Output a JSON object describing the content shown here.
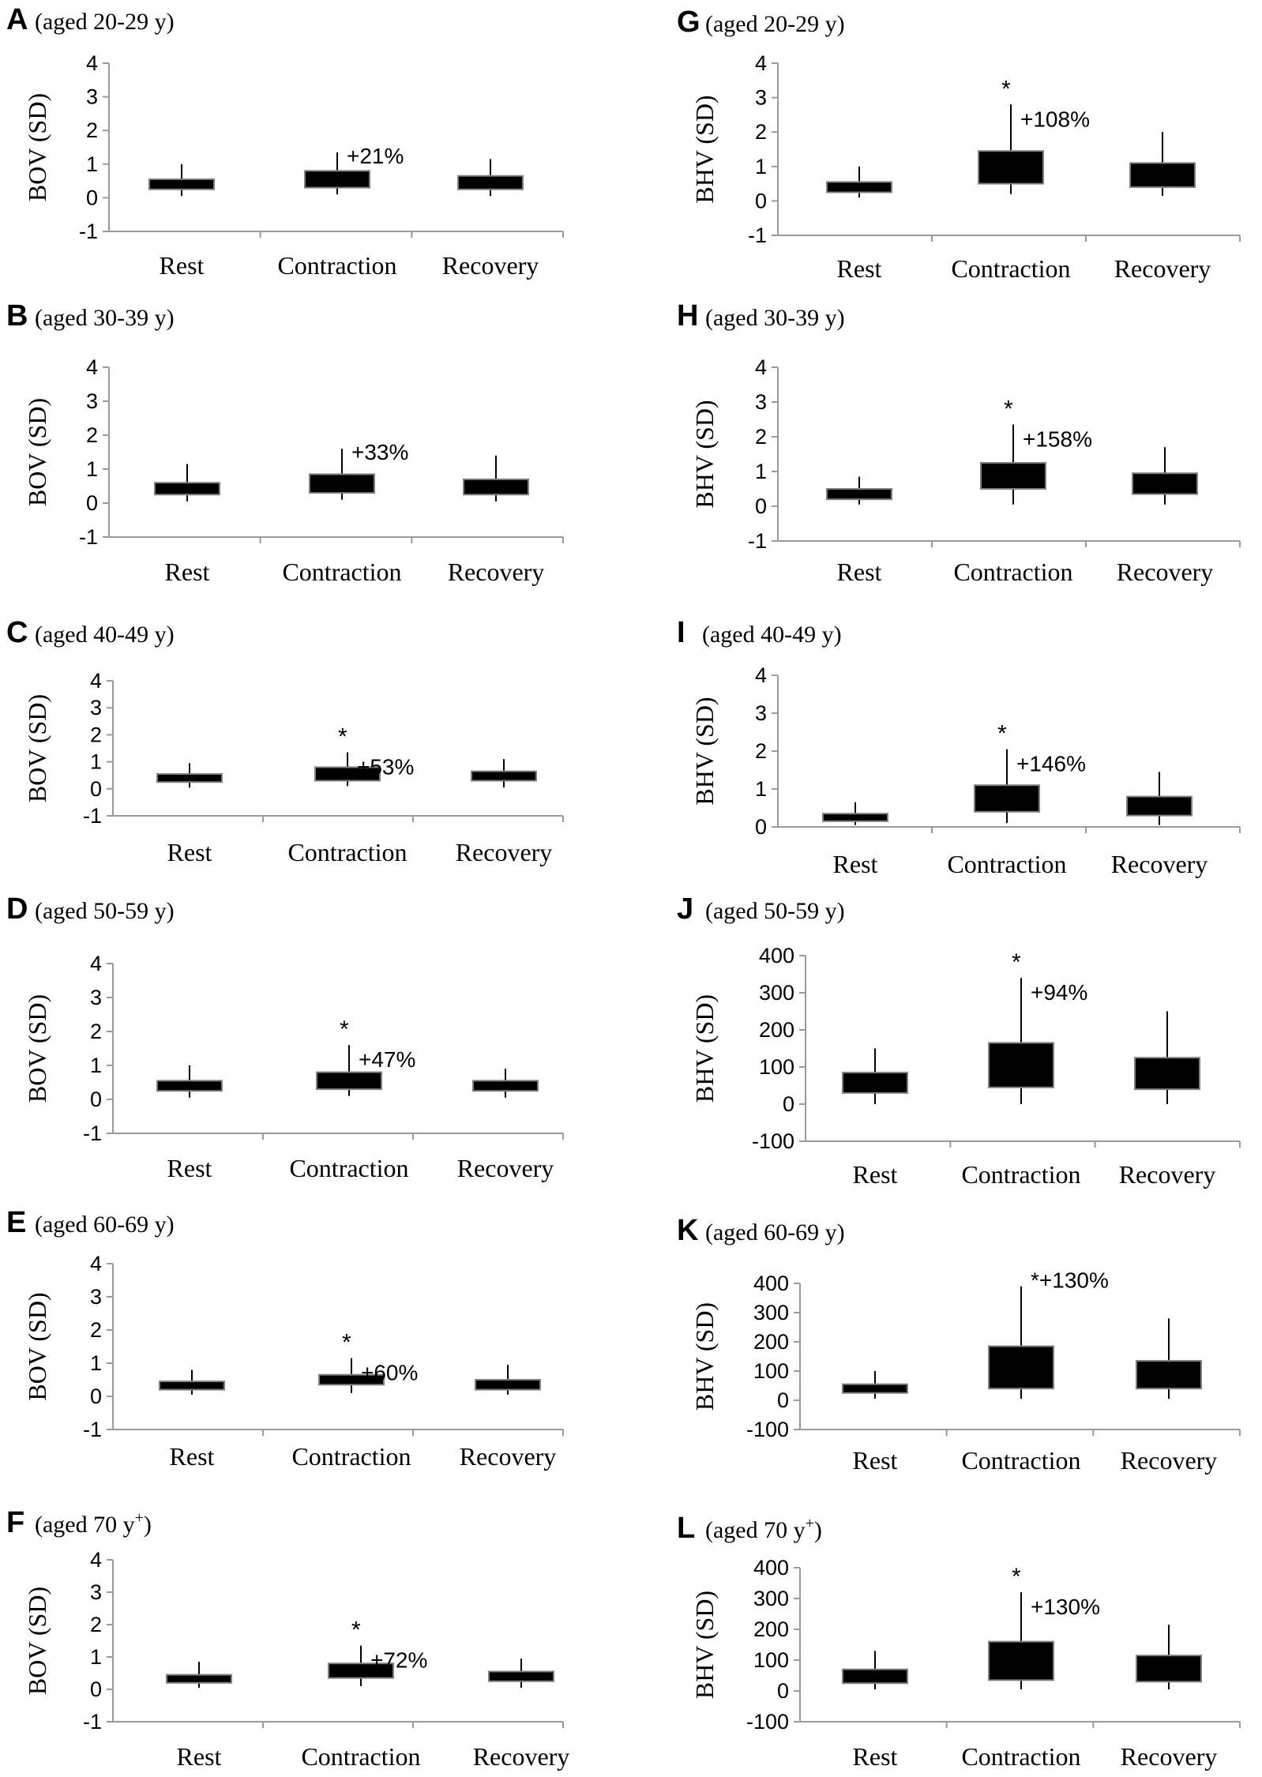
{
  "chart_data": [
    {
      "id": "A",
      "letter": "A",
      "title": "(aged 20-29 y)",
      "type": "bar",
      "ylabel": "BOV (SD)",
      "yticks": [
        4,
        3,
        2,
        1,
        0,
        -1
      ],
      "ylim": [
        -1,
        4
      ],
      "categories": [
        "Rest",
        "Contraction",
        "Recovery"
      ],
      "boxes": [
        {
          "low": 0.25,
          "high": 0.55,
          "whisker_low": 0.05,
          "whisker_high": 1.0
        },
        {
          "low": 0.3,
          "high": 0.8,
          "whisker_low": 0.1,
          "whisker_high": 1.35
        },
        {
          "low": 0.25,
          "high": 0.65,
          "whisker_low": 0.05,
          "whisker_high": 1.15
        }
      ],
      "annotation": {
        "category": 1,
        "text": "+21%",
        "star": false
      }
    },
    {
      "id": "B",
      "letter": "B",
      "title": "(aged 30-39 y)",
      "type": "bar",
      "ylabel": "BOV (SD)",
      "yticks": [
        4,
        3,
        2,
        1,
        0,
        -1
      ],
      "ylim": [
        -1,
        4
      ],
      "categories": [
        "Rest",
        "Contraction",
        "Recovery"
      ],
      "boxes": [
        {
          "low": 0.25,
          "high": 0.6,
          "whisker_low": 0.05,
          "whisker_high": 1.15
        },
        {
          "low": 0.3,
          "high": 0.85,
          "whisker_low": 0.1,
          "whisker_high": 1.6
        },
        {
          "low": 0.25,
          "high": 0.7,
          "whisker_low": 0.05,
          "whisker_high": 1.4
        }
      ],
      "annotation": {
        "category": 1,
        "text": "+33%",
        "star": false
      }
    },
    {
      "id": "C",
      "letter": "C",
      "title": "(aged 40-49 y)",
      "type": "bar",
      "ylabel": "BOV (SD)",
      "yticks": [
        4,
        3,
        2,
        1,
        0,
        -1
      ],
      "ylim": [
        -1,
        4
      ],
      "categories": [
        "Rest",
        "Contraction",
        "Recovery"
      ],
      "boxes": [
        {
          "low": 0.25,
          "high": 0.55,
          "whisker_low": 0.05,
          "whisker_high": 0.95
        },
        {
          "low": 0.3,
          "high": 0.8,
          "whisker_low": 0.1,
          "whisker_high": 1.35
        },
        {
          "low": 0.3,
          "high": 0.65,
          "whisker_low": 0.05,
          "whisker_high": 1.1
        }
      ],
      "annotation": {
        "category": 1,
        "text": "+53%",
        "star": true
      }
    },
    {
      "id": "D",
      "letter": "D",
      "title": "(aged 50-59 y)",
      "type": "bar",
      "ylabel": "BOV (SD)",
      "yticks": [
        4,
        3,
        2,
        1,
        0,
        -1
      ],
      "ylim": [
        -1,
        4
      ],
      "categories": [
        "Rest",
        "Contraction",
        "Recovery"
      ],
      "boxes": [
        {
          "low": 0.25,
          "high": 0.55,
          "whisker_low": 0.05,
          "whisker_high": 1.0
        },
        {
          "low": 0.3,
          "high": 0.8,
          "whisker_low": 0.1,
          "whisker_high": 1.6
        },
        {
          "low": 0.25,
          "high": 0.55,
          "whisker_low": 0.05,
          "whisker_high": 0.9
        }
      ],
      "annotation": {
        "category": 1,
        "text": "+47%",
        "star": true
      }
    },
    {
      "id": "E",
      "letter": "E",
      "title": "(aged 60-69 y)",
      "type": "bar",
      "ylabel": "BOV (SD)",
      "yticks": [
        4,
        3,
        2,
        1,
        0,
        -1
      ],
      "ylim": [
        -1,
        4
      ],
      "categories": [
        "Rest",
        "Contraction",
        "Recovery"
      ],
      "boxes": [
        {
          "low": 0.2,
          "high": 0.45,
          "whisker_low": 0.05,
          "whisker_high": 0.8
        },
        {
          "low": 0.35,
          "high": 0.65,
          "whisker_low": 0.1,
          "whisker_high": 1.15
        },
        {
          "low": 0.2,
          "high": 0.5,
          "whisker_low": 0.05,
          "whisker_high": 0.95
        }
      ],
      "annotation": {
        "category": 1,
        "text": "+60%",
        "star": true
      }
    },
    {
      "id": "F",
      "letter": "F",
      "title": "(aged 70 y",
      "title_sup": "+",
      "title_end": ")",
      "type": "bar",
      "ylabel": "BOV (SD)",
      "yticks": [
        4,
        3,
        2,
        1,
        0,
        -1
      ],
      "ylim": [
        -1,
        4
      ],
      "categories": [
        "Rest",
        "Contraction",
        "Recovery"
      ],
      "boxes": [
        {
          "low": 0.2,
          "high": 0.45,
          "whisker_low": 0.05,
          "whisker_high": 0.85
        },
        {
          "low": 0.35,
          "high": 0.8,
          "whisker_low": 0.1,
          "whisker_high": 1.35
        },
        {
          "low": 0.25,
          "high": 0.55,
          "whisker_low": 0.05,
          "whisker_high": 0.95
        }
      ],
      "annotation": {
        "category": 1,
        "text": "+72%",
        "star": true
      }
    },
    {
      "id": "G",
      "letter": "G",
      "title": "(aged 20-29 y)",
      "type": "bar",
      "ylabel": "BHV (SD)",
      "yticks": [
        4,
        3,
        2,
        1,
        0,
        -1
      ],
      "ylim": [
        -1,
        4
      ],
      "categories": [
        "Rest",
        "Contraction",
        "Recovery"
      ],
      "boxes": [
        {
          "low": 0.25,
          "high": 0.55,
          "whisker_low": 0.1,
          "whisker_high": 1.0
        },
        {
          "low": 0.5,
          "high": 1.45,
          "whisker_low": 0.2,
          "whisker_high": 2.8
        },
        {
          "low": 0.4,
          "high": 1.1,
          "whisker_low": 0.15,
          "whisker_high": 2.0
        }
      ],
      "annotation": {
        "category": 1,
        "text": "+108%",
        "star": true
      }
    },
    {
      "id": "H",
      "letter": "H",
      "title": "(aged 30-39 y)",
      "type": "bar",
      "ylabel": "BHV (SD)",
      "yticks": [
        4,
        3,
        2,
        1,
        0,
        -1
      ],
      "ylim": [
        -1,
        4
      ],
      "categories": [
        "Rest",
        "Contraction",
        "Recovery"
      ],
      "boxes": [
        {
          "low": 0.2,
          "high": 0.5,
          "whisker_low": 0.05,
          "whisker_high": 0.85
        },
        {
          "low": 0.5,
          "high": 1.25,
          "whisker_low": 0.05,
          "whisker_high": 2.35
        },
        {
          "low": 0.35,
          "high": 0.95,
          "whisker_low": 0.05,
          "whisker_high": 1.7
        }
      ],
      "annotation": {
        "category": 1,
        "text": "+158%",
        "star": true
      }
    },
    {
      "id": "I",
      "letter": "I",
      "title": "(aged 40-49 y)",
      "type": "bar",
      "ylabel": "BHV (SD)",
      "yticks": [
        4,
        3,
        2,
        1,
        0
      ],
      "ylim": [
        0,
        4
      ],
      "categories": [
        "Rest",
        "Contraction",
        "Recovery"
      ],
      "boxes": [
        {
          "low": 0.15,
          "high": 0.35,
          "whisker_low": 0.05,
          "whisker_high": 0.65
        },
        {
          "low": 0.4,
          "high": 1.1,
          "whisker_low": 0.1,
          "whisker_high": 2.05
        },
        {
          "low": 0.3,
          "high": 0.8,
          "whisker_low": 0.05,
          "whisker_high": 1.45
        }
      ],
      "annotation": {
        "category": 1,
        "text": "+146%",
        "star": true
      }
    },
    {
      "id": "J",
      "letter": "J",
      "title": "(aged 50-59 y)",
      "type": "bar",
      "ylabel": "BHV (SD)",
      "yticks": [
        400,
        300,
        200,
        100,
        0,
        -100
      ],
      "ylim": [
        -100,
        400
      ],
      "categories": [
        "Rest",
        "Contraction",
        "Recovery"
      ],
      "boxes": [
        {
          "low": 30,
          "high": 85,
          "whisker_low": 0,
          "whisker_high": 150
        },
        {
          "low": 45,
          "high": 165,
          "whisker_low": 0,
          "whisker_high": 340
        },
        {
          "low": 40,
          "high": 125,
          "whisker_low": 0,
          "whisker_high": 250
        }
      ],
      "annotation": {
        "category": 1,
        "text": "+94%",
        "star": true
      }
    },
    {
      "id": "K",
      "letter": "K",
      "title": "(aged 60-69 y)",
      "type": "bar",
      "ylabel": "BHV (SD)",
      "yticks": [
        400,
        300,
        200,
        100,
        0,
        -100
      ],
      "ylim": [
        -100,
        400
      ],
      "categories": [
        "Rest",
        "Contraction",
        "Recovery"
      ],
      "boxes": [
        {
          "low": 25,
          "high": 55,
          "whisker_low": 5,
          "whisker_high": 100
        },
        {
          "low": 40,
          "high": 185,
          "whisker_low": 5,
          "whisker_high": 390
        },
        {
          "low": 40,
          "high": 135,
          "whisker_low": 5,
          "whisker_high": 280
        }
      ],
      "annotation": {
        "category": 1,
        "text": "*+130%",
        "star": false
      }
    },
    {
      "id": "L",
      "letter": "L",
      "title": "(aged 70 y",
      "title_sup": "+",
      "title_end": ")",
      "type": "bar",
      "ylabel": "BHV (SD)",
      "yticks": [
        400,
        300,
        200,
        100,
        0,
        -100
      ],
      "ylim": [
        -100,
        400
      ],
      "categories": [
        "Rest",
        "Contraction",
        "Recovery"
      ],
      "boxes": [
        {
          "low": 25,
          "high": 70,
          "whisker_low": 5,
          "whisker_high": 130
        },
        {
          "low": 35,
          "high": 160,
          "whisker_low": 5,
          "whisker_high": 320
        },
        {
          "low": 30,
          "high": 115,
          "whisker_low": 5,
          "whisker_high": 215
        }
      ],
      "annotation": {
        "category": 1,
        "text": "+130%",
        "star": true
      }
    }
  ]
}
